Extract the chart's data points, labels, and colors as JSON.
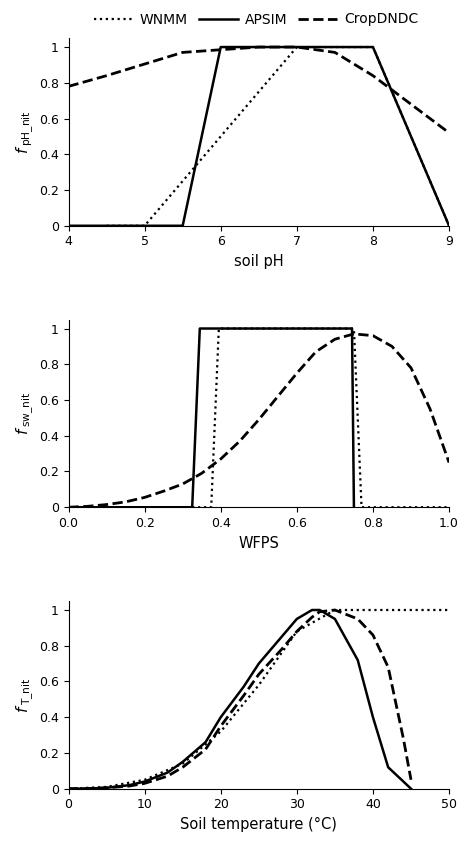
{
  "legend_labels": [
    "WNMM",
    "APSIM",
    "CropDNDC"
  ],
  "line_styles": [
    "dotted",
    "solid",
    "dashed"
  ],
  "color": "black",
  "panel1": {
    "xlabel": "soil pH",
    "ylabel": "f_pH_nit",
    "xlim": [
      4,
      9
    ],
    "ylim": [
      0,
      1.05
    ],
    "xticks": [
      4,
      5,
      6,
      7,
      8,
      9
    ],
    "yticks": [
      0,
      0.2,
      0.4,
      0.6,
      0.8,
      1
    ],
    "WNMM": [
      [
        4.5,
        5.0,
        7.0,
        8.0,
        9.0
      ],
      [
        0,
        0,
        1.0,
        1.0,
        0
      ]
    ],
    "APSIM": [
      [
        4.0,
        5.5,
        6.0,
        8.0,
        9.0
      ],
      [
        0,
        0,
        1.0,
        1.0,
        0
      ]
    ],
    "CropDNDC": [
      [
        4.0,
        4.5,
        5.5,
        6.5,
        7.0,
        7.5,
        8.0,
        8.5,
        9.0
      ],
      [
        0.78,
        0.84,
        0.97,
        1.0,
        1.0,
        0.97,
        0.84,
        0.68,
        0.52
      ]
    ]
  },
  "panel2": {
    "xlabel": "WFPS",
    "ylabel": "f_sw_nit",
    "xlim": [
      0,
      1.0
    ],
    "ylim": [
      0,
      1.05
    ],
    "xticks": [
      0,
      0.2,
      0.4,
      0.6,
      0.8,
      1.0
    ],
    "yticks": [
      0,
      0.2,
      0.4,
      0.6,
      0.8,
      1
    ],
    "WNMM": [
      [
        0.0,
        0.375,
        0.395,
        0.75,
        0.77,
        1.0
      ],
      [
        0,
        0,
        1.0,
        1.0,
        0,
        0
      ]
    ],
    "APSIM": [
      [
        0.0,
        0.325,
        0.345,
        0.745,
        0.75
      ],
      [
        0,
        0,
        1.0,
        1.0,
        0
      ]
    ],
    "CropDNDC": [
      [
        0.0,
        0.05,
        0.1,
        0.15,
        0.2,
        0.25,
        0.3,
        0.35,
        0.4,
        0.45,
        0.5,
        0.55,
        0.6,
        0.65,
        0.7,
        0.75,
        0.8,
        0.85,
        0.9,
        0.95,
        1.0
      ],
      [
        0.0,
        0.005,
        0.015,
        0.03,
        0.055,
        0.09,
        0.13,
        0.19,
        0.27,
        0.37,
        0.49,
        0.62,
        0.75,
        0.87,
        0.94,
        0.97,
        0.96,
        0.9,
        0.78,
        0.55,
        0.25
      ]
    ]
  },
  "panel3": {
    "xlabel": "Soil temperature (°C)",
    "ylabel": "f_T_nit",
    "xlim": [
      0,
      50
    ],
    "ylim": [
      0,
      1.05
    ],
    "xticks": [
      0,
      10,
      20,
      30,
      40,
      50
    ],
    "yticks": [
      0,
      0.2,
      0.4,
      0.6,
      0.8,
      1
    ],
    "WNMM": [
      [
        0,
        5,
        10,
        15,
        20,
        25,
        30,
        35,
        40,
        45,
        50
      ],
      [
        0,
        0.01,
        0.05,
        0.14,
        0.32,
        0.58,
        0.88,
        1.0,
        1.0,
        1.0,
        1.0
      ]
    ],
    "APSIM": [
      [
        0,
        2,
        5,
        8,
        10,
        13,
        15,
        18,
        20,
        23,
        25,
        28,
        30,
        32,
        33,
        35,
        38,
        40,
        42,
        45
      ],
      [
        0,
        0.0,
        0.005,
        0.02,
        0.04,
        0.09,
        0.15,
        0.26,
        0.4,
        0.57,
        0.7,
        0.85,
        0.95,
        1.0,
        1.0,
        0.95,
        0.72,
        0.4,
        0.12,
        0.0
      ]
    ],
    "CropDNDC": [
      [
        0,
        2,
        5,
        8,
        10,
        13,
        15,
        18,
        20,
        23,
        25,
        28,
        30,
        32,
        33,
        35,
        38,
        40,
        42,
        44,
        45
      ],
      [
        0,
        0.0,
        0.005,
        0.015,
        0.03,
        0.07,
        0.12,
        0.22,
        0.35,
        0.52,
        0.64,
        0.78,
        0.88,
        0.96,
        0.99,
        1.0,
        0.95,
        0.86,
        0.68,
        0.28,
        0.05
      ]
    ]
  }
}
